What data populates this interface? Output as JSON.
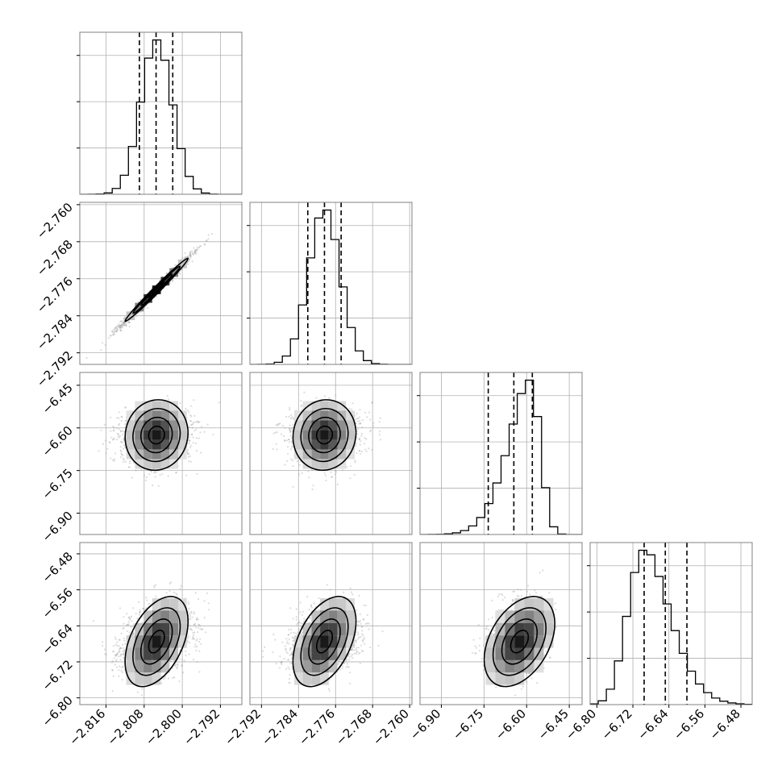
{
  "chart_data": {
    "type": "corner",
    "style": {
      "grid": true,
      "frame_color": "#808080",
      "grid_color": "#b0b0b0",
      "contour_color": "#000000",
      "point_color": "#9a9a9a",
      "histogram_color": "#000000"
    },
    "parameters": [
      {
        "range": [
          -2.8215,
          -2.7875
        ],
        "ticks": [
          -2.816,
          -2.808,
          -2.8,
          -2.792
        ],
        "tick_labels": [
          "−2.816",
          "−2.808",
          "−2.800",
          "−2.792"
        ],
        "mean": -2.8054,
        "sd": 0.0033,
        "skew": 0,
        "quantiles": [
          -2.809,
          -2.8055,
          -2.802
        ],
        "hist_ylim": [
          0,
          1.05
        ]
      },
      {
        "range": [
          -2.7945,
          -2.7595
        ],
        "ticks": [
          -2.792,
          -2.784,
          -2.776,
          -2.768,
          -2.76
        ],
        "tick_labels": [
          "−2.792",
          "−2.784",
          "−2.776",
          "−2.768",
          "−2.760"
        ],
        "mean": -2.7784,
        "sd": 0.0034,
        "skew": 0,
        "quantiles": [
          -2.782,
          -2.7784,
          -2.7748
        ],
        "hist_ylim": [
          0,
          1.05
        ]
      },
      {
        "range": [
          -6.975,
          -6.405
        ],
        "ticks": [
          -6.9,
          -6.75,
          -6.6,
          -6.45
        ],
        "tick_labels": [
          "−6.90",
          "−6.75",
          "−6.60",
          "−6.45"
        ],
        "mean": -6.625,
        "sd": 0.062,
        "skew": -3.5,
        "quantiles": [
          -6.735,
          -6.645,
          -6.58
        ],
        "hist_ylim": [
          0,
          1.05
        ]
      },
      {
        "range": [
          -6.815,
          -6.455
        ],
        "ticks": [
          -6.8,
          -6.72,
          -6.64,
          -6.56,
          -6.48
        ],
        "tick_labels": [
          "−6.80",
          "−6.72",
          "−6.64",
          "−6.56",
          "−6.48"
        ],
        "mean": -6.675,
        "sd": 0.05,
        "skew": 2.5,
        "quantiles": [
          -6.695,
          -6.648,
          -6.6
        ],
        "hist_ylim": [
          0,
          1.05
        ]
      }
    ],
    "correlations": [
      [
        1.0,
        0.99,
        0.06,
        0.45
      ],
      [
        0.99,
        1.0,
        0.06,
        0.45
      ],
      [
        0.06,
        0.06,
        1.0,
        0.4
      ],
      [
        0.45,
        0.45,
        0.4,
        1.0
      ]
    ],
    "contour_levels": [
      0.5,
      1.0,
      1.5,
      2.0
    ],
    "samples_per_panel": 1700
  }
}
